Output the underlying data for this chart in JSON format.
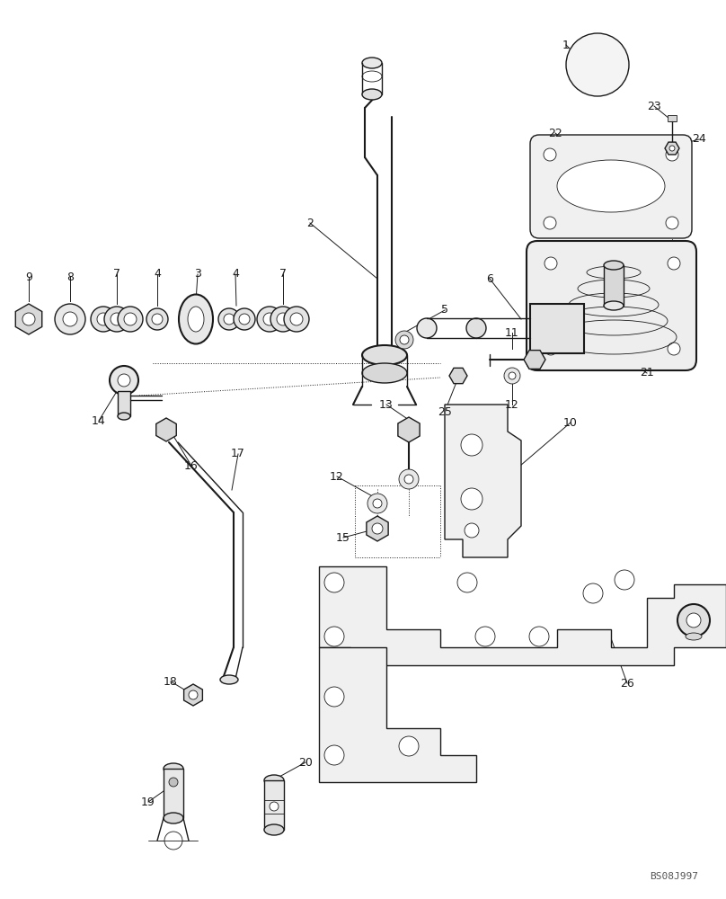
{
  "bg_color": "#ffffff",
  "line_color": "#1a1a1a",
  "fig_width": 8.08,
  "fig_height": 10.0,
  "dpi": 100,
  "watermark": "BS08J997"
}
